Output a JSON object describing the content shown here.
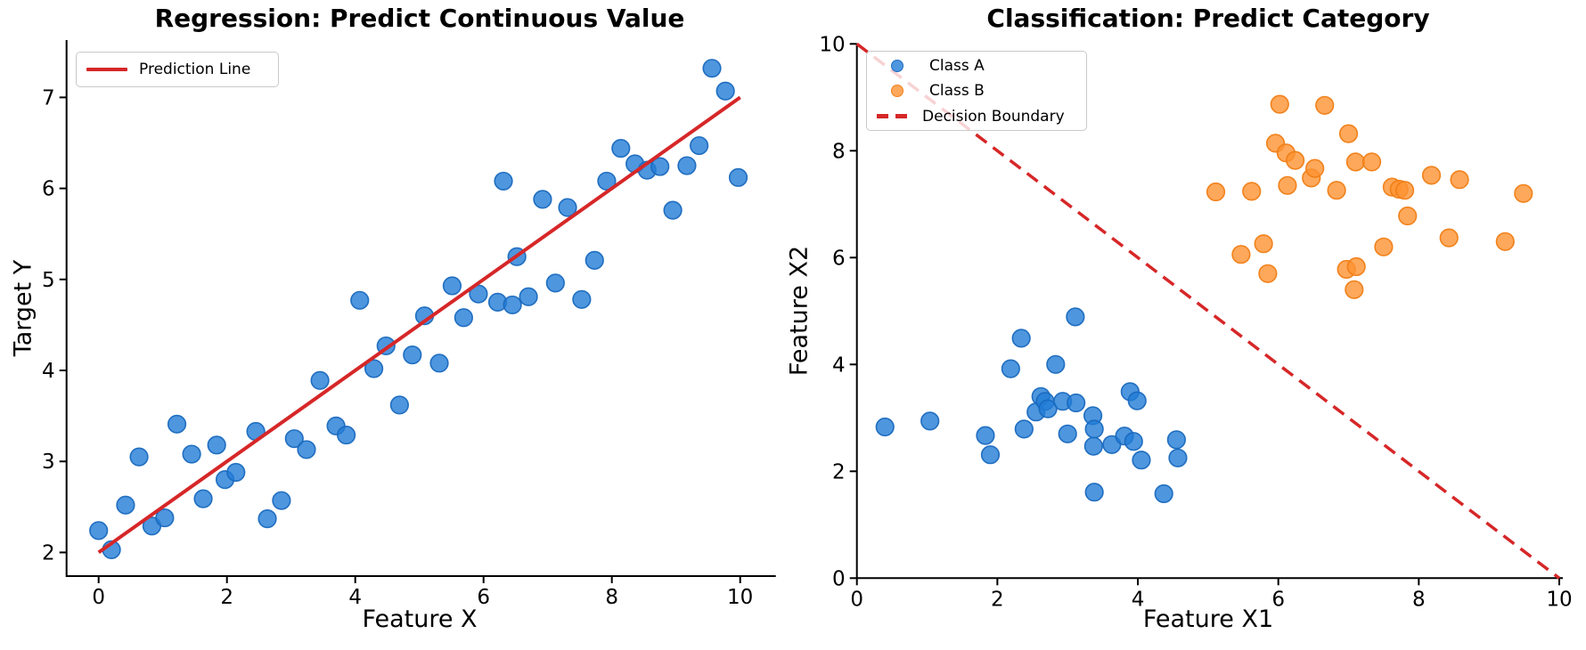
{
  "figure": {
    "background": "#ffffff"
  },
  "chart_data": [
    {
      "type": "scatter",
      "title": "Regression: Predict Continuous Value",
      "xlabel": "Feature X",
      "ylabel": "Target Y",
      "xlim": [
        -0.5,
        10.5
      ],
      "ylim": [
        1.74,
        7.63
      ],
      "xticks": [
        0,
        2,
        4,
        6,
        8,
        10
      ],
      "yticks": [
        2,
        3,
        4,
        5,
        6,
        7
      ],
      "grid": false,
      "legend": {
        "position": "upper left",
        "entries": [
          {
            "label": "Prediction Line",
            "glyph": "solid-line",
            "color": "#d62728"
          }
        ]
      },
      "series": [
        {
          "kind": "scatter",
          "color": "#1f77b4",
          "fill": "rgba(34,124,214,0.8)",
          "stroke": "rgba(25,105,190,0.95)",
          "points": [
            [
              0.0,
              2.24
            ],
            [
              0.2,
              2.03
            ],
            [
              0.42,
              2.52
            ],
            [
              0.63,
              3.05
            ],
            [
              0.83,
              2.29
            ],
            [
              1.03,
              2.38
            ],
            [
              1.22,
              3.41
            ],
            [
              1.45,
              3.08
            ],
            [
              1.63,
              2.59
            ],
            [
              1.84,
              3.18
            ],
            [
              1.97,
              2.8
            ],
            [
              2.14,
              2.88
            ],
            [
              2.45,
              3.33
            ],
            [
              2.63,
              2.37
            ],
            [
              2.85,
              2.57
            ],
            [
              3.05,
              3.25
            ],
            [
              3.24,
              3.13
            ],
            [
              3.45,
              3.89
            ],
            [
              3.7,
              3.39
            ],
            [
              3.86,
              3.29
            ],
            [
              4.07,
              4.77
            ],
            [
              4.29,
              4.02
            ],
            [
              4.48,
              4.27
            ],
            [
              4.69,
              3.62
            ],
            [
              4.89,
              4.17
            ],
            [
              5.08,
              4.6
            ],
            [
              5.31,
              4.08
            ],
            [
              5.51,
              4.93
            ],
            [
              5.69,
              4.58
            ],
            [
              5.92,
              4.84
            ],
            [
              6.22,
              4.75
            ],
            [
              6.31,
              6.08
            ],
            [
              6.45,
              4.72
            ],
            [
              6.52,
              5.25
            ],
            [
              6.7,
              4.81
            ],
            [
              6.92,
              5.88
            ],
            [
              7.12,
              4.96
            ],
            [
              7.31,
              5.79
            ],
            [
              7.53,
              4.78
            ],
            [
              7.73,
              5.21
            ],
            [
              7.92,
              6.08
            ],
            [
              8.14,
              6.44
            ],
            [
              8.36,
              6.27
            ],
            [
              8.55,
              6.2
            ],
            [
              8.75,
              6.24
            ],
            [
              8.95,
              5.76
            ],
            [
              9.17,
              6.25
            ],
            [
              9.36,
              6.47
            ],
            [
              9.56,
              7.32
            ],
            [
              9.77,
              7.07
            ],
            [
              9.97,
              6.12
            ]
          ]
        },
        {
          "kind": "line",
          "name": "Prediction Line",
          "style": "solid",
          "color": "#d62728",
          "width": 4,
          "points": [
            [
              0,
              2
            ],
            [
              10,
              7
            ]
          ]
        }
      ]
    },
    {
      "type": "scatter",
      "title": "Classification: Predict Category",
      "xlabel": "Feature X1",
      "ylabel": "Feature X2",
      "xlim": [
        0,
        10
      ],
      "ylim": [
        0,
        10
      ],
      "xticks": [
        0,
        2,
        4,
        6,
        8,
        10
      ],
      "yticks": [
        0,
        2,
        4,
        6,
        8,
        10
      ],
      "grid": false,
      "legend": {
        "position": "upper left",
        "entries": [
          {
            "label": "Class A",
            "glyph": "dot",
            "color": "#1f77b4"
          },
          {
            "label": "Class B",
            "glyph": "dot",
            "color": "#ff7f0e"
          },
          {
            "label": "Decision Boundary",
            "glyph": "dashed-line",
            "color": "#d62728"
          }
        ]
      },
      "series": [
        {
          "kind": "scatter",
          "name": "Class A",
          "color": "#1f77b4",
          "fill": "rgba(34,124,214,0.8)",
          "stroke": "rgba(25,105,190,0.95)",
          "points": [
            [
              0.4,
              2.83
            ],
            [
              1.04,
              2.94
            ],
            [
              1.83,
              2.67
            ],
            [
              1.9,
              2.31
            ],
            [
              2.19,
              3.92
            ],
            [
              2.34,
              4.49
            ],
            [
              2.38,
              2.79
            ],
            [
              2.55,
              3.11
            ],
            [
              2.62,
              3.4
            ],
            [
              2.68,
              3.31
            ],
            [
              2.72,
              3.17
            ],
            [
              2.83,
              4.0
            ],
            [
              2.93,
              3.31
            ],
            [
              3.0,
              2.7
            ],
            [
              3.11,
              4.89
            ],
            [
              3.12,
              3.28
            ],
            [
              3.36,
              3.04
            ],
            [
              3.37,
              2.47
            ],
            [
              3.38,
              2.79
            ],
            [
              3.38,
              1.61
            ],
            [
              3.63,
              2.5
            ],
            [
              3.81,
              2.66
            ],
            [
              3.89,
              3.49
            ],
            [
              3.94,
              2.56
            ],
            [
              3.99,
              3.32
            ],
            [
              4.05,
              2.21
            ],
            [
              4.37,
              1.58
            ],
            [
              4.55,
              2.59
            ],
            [
              4.57,
              2.25
            ]
          ]
        },
        {
          "kind": "scatter",
          "name": "Class B",
          "color": "#ff7f0e",
          "fill": "rgba(252,146,50,0.8)",
          "stroke": "rgba(240,125,20,0.95)",
          "points": [
            [
              5.11,
              7.23
            ],
            [
              5.47,
              6.06
            ],
            [
              5.62,
              7.24
            ],
            [
              5.79,
              6.26
            ],
            [
              5.85,
              5.7
            ],
            [
              5.96,
              8.14
            ],
            [
              6.02,
              8.87
            ],
            [
              6.11,
              7.96
            ],
            [
              6.13,
              7.35
            ],
            [
              6.24,
              7.82
            ],
            [
              6.47,
              7.49
            ],
            [
              6.52,
              7.67
            ],
            [
              6.66,
              8.85
            ],
            [
              6.83,
              7.26
            ],
            [
              6.97,
              5.78
            ],
            [
              7.0,
              8.32
            ],
            [
              7.08,
              5.4
            ],
            [
              7.1,
              7.79
            ],
            [
              7.11,
              5.83
            ],
            [
              7.33,
              7.79
            ],
            [
              7.5,
              6.2
            ],
            [
              7.62,
              7.32
            ],
            [
              7.72,
              7.28
            ],
            [
              7.8,
              7.26
            ],
            [
              7.84,
              6.78
            ],
            [
              8.18,
              7.54
            ],
            [
              8.43,
              6.37
            ],
            [
              8.58,
              7.46
            ],
            [
              9.23,
              6.3
            ],
            [
              9.49,
              7.2
            ]
          ]
        },
        {
          "kind": "line",
          "name": "Decision Boundary",
          "style": "dashed",
          "color": "#d62728",
          "width": 3.5,
          "dash": "15 9",
          "points": [
            [
              0,
              10
            ],
            [
              10,
              0
            ]
          ]
        }
      ]
    }
  ]
}
